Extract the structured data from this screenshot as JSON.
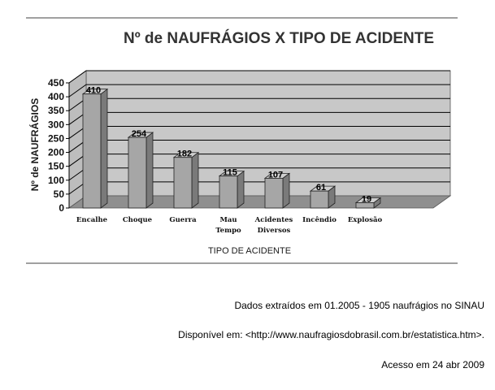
{
  "chart_data": {
    "type": "bar",
    "title": "Nº de NAUFRÁGIOS X TIPO DE ACIDENTE",
    "xlabel": "TIPO DE ACIDENTE",
    "ylabel": "Nº de NAUFRÁGIOS",
    "categories": [
      [
        "Encalhe"
      ],
      [
        "Choque"
      ],
      [
        "Guerra"
      ],
      [
        "Mau",
        "Tempo"
      ],
      [
        "Acidentes",
        "Diversos"
      ],
      [
        "Incêndio"
      ],
      [
        "Explosão"
      ]
    ],
    "values": [
      410,
      254,
      182,
      115,
      107,
      61,
      19
    ],
    "ylim": [
      0,
      450
    ],
    "yticks": [
      0,
      50,
      100,
      150,
      200,
      250,
      300,
      350,
      400,
      450
    ],
    "grid": true,
    "three_d": true,
    "legend": "none",
    "colors": {
      "bar_front": "#a6a6a6",
      "bar_side": "#7a7a7a",
      "bar_top": "#cfcfcf",
      "wall": "#c8c8c8",
      "floor": "#8f8f8f",
      "gridline": "#000000"
    }
  },
  "notes": [
    "Dados extraídos em 01.2005 - 1905 naufrágios no SINAU",
    "Disponível em: <http://www.naufragiosdobrasil.com.br/estatistica.htm>.",
    "Acesso em 24 abr 2009"
  ]
}
